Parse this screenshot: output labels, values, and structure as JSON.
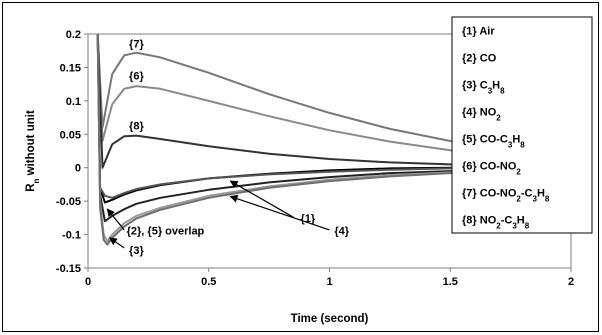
{
  "chart_data": {
    "type": "line",
    "xlabel": "Time (second)",
    "ylabel": "R",
    "ylabel_sub": "n",
    "ylabel_rest": " without unit",
    "xlim": [
      0,
      2
    ],
    "ylim": [
      -0.15,
      0.2
    ],
    "xticks": [
      "0",
      "0.5",
      "1",
      "1.5",
      "2"
    ],
    "yticks": [
      "0.2",
      "0.15",
      "0.1",
      "0.05",
      "0",
      "-0.05",
      "-0.1",
      "-0.15"
    ],
    "grid": false,
    "legend_position": "right",
    "legend": [
      {
        "id": "{1}",
        "parts": [
          {
            "t": "Air"
          }
        ]
      },
      {
        "id": "{2}",
        "parts": [
          {
            "t": "CO"
          }
        ]
      },
      {
        "id": "{3}",
        "parts": [
          {
            "t": "C"
          },
          {
            "t": "3",
            "sub": true
          },
          {
            "t": "H"
          },
          {
            "t": "8",
            "sub": true
          }
        ]
      },
      {
        "id": "{4}",
        "parts": [
          {
            "t": "NO"
          },
          {
            "t": "2",
            "sub": true
          }
        ]
      },
      {
        "id": "{5}",
        "parts": [
          {
            "t": "CO-C"
          },
          {
            "t": "3",
            "sub": true
          },
          {
            "t": "H"
          },
          {
            "t": "8",
            "sub": true
          }
        ]
      },
      {
        "id": "{6}",
        "parts": [
          {
            "t": "CO-NO"
          },
          {
            "t": "2",
            "sub": true
          }
        ]
      },
      {
        "id": "{7}",
        "parts": [
          {
            "t": "CO-NO"
          },
          {
            "t": "2",
            "sub": true
          },
          {
            "t": "-C"
          },
          {
            "t": "3",
            "sub": true
          },
          {
            "t": "H"
          },
          {
            "t": "8",
            "sub": true
          }
        ]
      },
      {
        "id": "{8}",
        "parts": [
          {
            "t": "NO"
          },
          {
            "t": "2",
            "sub": true
          },
          {
            "t": "-C"
          },
          {
            "t": "3",
            "sub": true
          },
          {
            "t": "H"
          },
          {
            "t": "8",
            "sub": true
          }
        ]
      }
    ],
    "series": [
      {
        "color": "#777777",
        "x": [
          0.04,
          0.06,
          0.1,
          0.15,
          0.2,
          0.3,
          0.5,
          0.75,
          1.0,
          1.25,
          1.5,
          1.75,
          2.0
        ],
        "y": [
          0.2,
          0.06,
          0.14,
          0.168,
          0.172,
          0.165,
          0.142,
          0.11,
          0.082,
          0.058,
          0.04,
          0.027,
          0.018
        ]
      },
      {
        "color": "#8a8a8a",
        "x": [
          0.04,
          0.06,
          0.1,
          0.15,
          0.2,
          0.3,
          0.5,
          0.75,
          1.0,
          1.25,
          1.5,
          1.75,
          2.0
        ],
        "y": [
          0.2,
          0.04,
          0.095,
          0.118,
          0.122,
          0.118,
          0.1,
          0.077,
          0.056,
          0.039,
          0.026,
          0.017,
          0.011
        ]
      },
      {
        "color": "#333333",
        "x": [
          0.04,
          0.06,
          0.1,
          0.15,
          0.2,
          0.3,
          0.5,
          0.75,
          1.0,
          1.25,
          1.5,
          1.75,
          2.0
        ],
        "y": [
          0.2,
          0.0,
          0.035,
          0.047,
          0.048,
          0.043,
          0.032,
          0.021,
          0.013,
          0.008,
          0.005,
          0.003,
          0.002
        ]
      },
      {
        "color": "#000000",
        "x": [
          0.04,
          0.05,
          0.07,
          0.1,
          0.15,
          0.2,
          0.3,
          0.5,
          0.75,
          1.0,
          1.25,
          1.5,
          1.75,
          2.0
        ],
        "y": [
          0.2,
          -0.03,
          -0.052,
          -0.048,
          -0.04,
          -0.034,
          -0.026,
          -0.016,
          -0.009,
          -0.004,
          -0.001,
          0.0,
          0.001,
          0.002
        ]
      },
      {
        "color": "#555555",
        "x": [
          0.04,
          0.05,
          0.07,
          0.1,
          0.15,
          0.2,
          0.3,
          0.5,
          0.75,
          1.0,
          1.25,
          1.5,
          1.75,
          2.0
        ],
        "y": [
          0.2,
          -0.03,
          -0.042,
          -0.045,
          -0.038,
          -0.032,
          -0.025,
          -0.016,
          -0.01,
          -0.006,
          -0.003,
          -0.001,
          0.0,
          0.001
        ]
      },
      {
        "color": "#222222",
        "x": [
          0.04,
          0.05,
          0.07,
          0.1,
          0.15,
          0.2,
          0.3,
          0.5,
          0.75,
          1.0,
          1.25,
          1.5,
          1.75,
          2.0
        ],
        "y": [
          0.2,
          -0.04,
          -0.08,
          -0.072,
          -0.062,
          -0.054,
          -0.045,
          -0.033,
          -0.022,
          -0.014,
          -0.008,
          -0.005,
          -0.003,
          -0.002
        ]
      },
      {
        "color": "#999999",
        "x": [
          0.04,
          0.05,
          0.065,
          0.08,
          0.1,
          0.15,
          0.2,
          0.3,
          0.5,
          0.75,
          1.0,
          1.25,
          1.5,
          1.75,
          2.0
        ],
        "y": [
          0.2,
          -0.05,
          -0.1,
          -0.11,
          -0.1,
          -0.083,
          -0.072,
          -0.06,
          -0.042,
          -0.028,
          -0.018,
          -0.011,
          -0.007,
          -0.004,
          -0.002
        ]
      },
      {
        "color": "#6f6f6f",
        "x": [
          0.04,
          0.05,
          0.065,
          0.08,
          0.1,
          0.15,
          0.2,
          0.3,
          0.5,
          0.75,
          1.0,
          1.25,
          1.5,
          1.75,
          2.0
        ],
        "y": [
          0.2,
          -0.06,
          -0.108,
          -0.115,
          -0.105,
          -0.088,
          -0.076,
          -0.063,
          -0.045,
          -0.03,
          -0.02,
          -0.013,
          -0.008,
          -0.005,
          -0.003
        ]
      }
    ],
    "annotations": [
      {
        "text": "{7}",
        "x": 0.17,
        "y": 0.18
      },
      {
        "text": "{6}",
        "x": 0.17,
        "y": 0.132
      },
      {
        "text": "{8}",
        "x": 0.17,
        "y": 0.057
      },
      {
        "text": "{1}",
        "x": 0.88,
        "y": -0.081
      },
      {
        "text": "{4}",
        "x": 1.02,
        "y": -0.1
      },
      {
        "text": "{2}, {5} overlap",
        "x": 0.16,
        "y": -0.1
      },
      {
        "text": "{3}",
        "x": 0.17,
        "y": -0.129
      }
    ],
    "arrows": [
      {
        "from": [
          0.85,
          -0.074
        ],
        "to": [
          0.59,
          -0.02
        ]
      },
      {
        "from": [
          1.0,
          -0.093
        ],
        "to": [
          0.59,
          -0.043
        ]
      },
      {
        "from": [
          0.15,
          -0.093
        ],
        "to": [
          0.08,
          -0.062
        ]
      },
      {
        "from": [
          0.15,
          -0.12
        ],
        "to": [
          0.09,
          -0.105
        ]
      }
    ]
  }
}
